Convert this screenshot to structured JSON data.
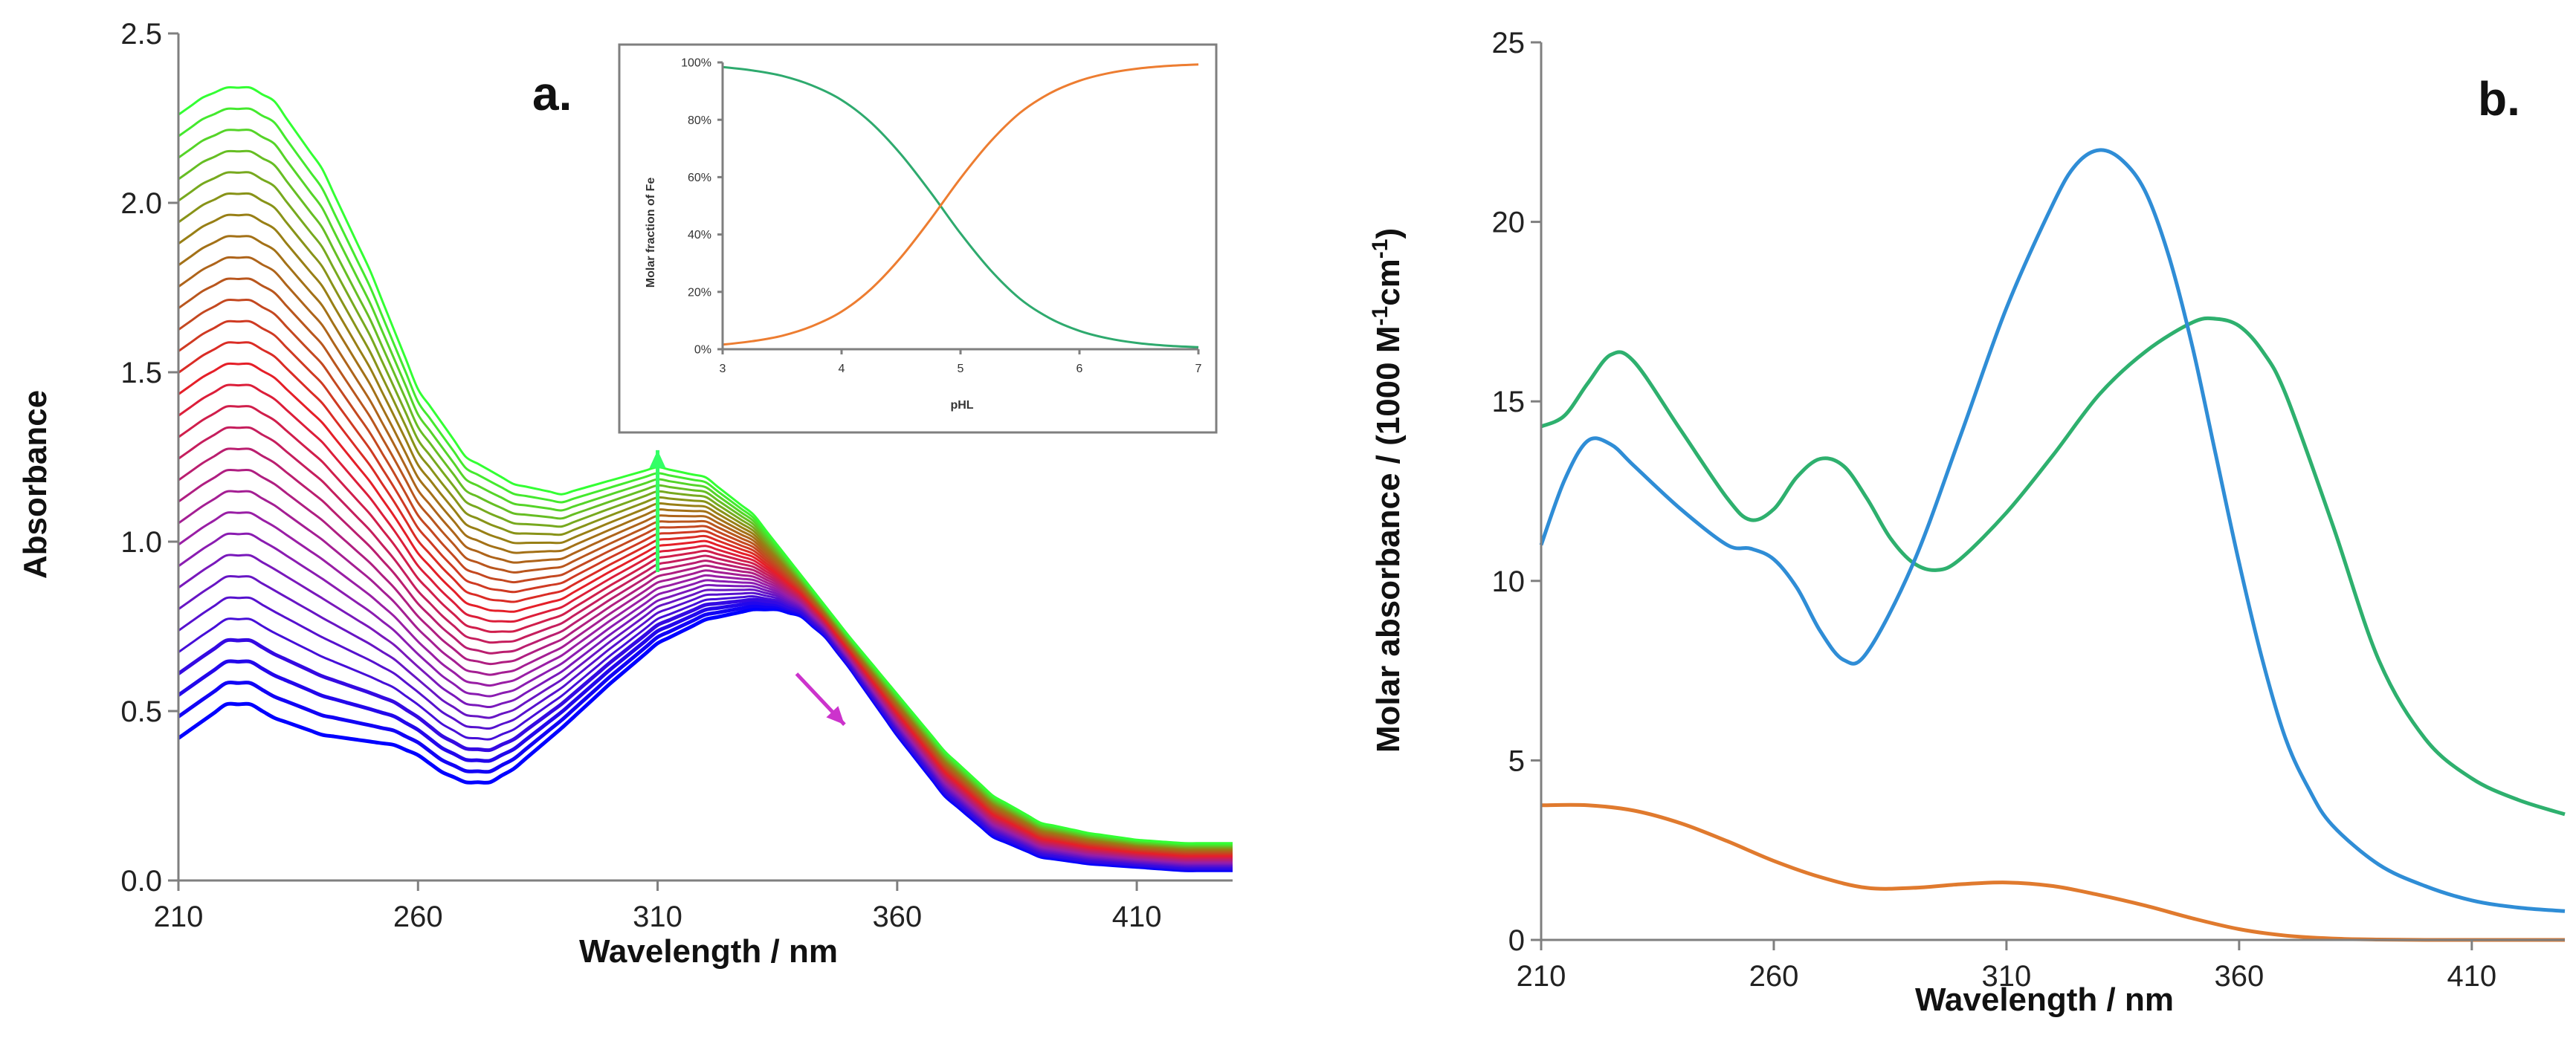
{
  "chart_data": [
    {
      "type": "line",
      "panel_label": "a.",
      "xlabel": "Wavelength / nm",
      "ylabel": "Absorbance",
      "xlim": [
        210,
        430
      ],
      "ylim": [
        0,
        2.5
      ],
      "xticks": [
        "210",
        "260",
        "310",
        "360",
        "410"
      ],
      "yticks": [
        "0.0",
        "0.5",
        "1.0",
        "1.5",
        "2.0",
        "2.5"
      ],
      "series_count": 30,
      "start_spectrum": {
        "color": "#0000ff",
        "x": [
          210,
          215,
          220,
          225,
          230,
          240,
          250,
          255,
          260,
          265,
          270,
          275,
          280,
          290,
          300,
          310,
          320,
          330,
          335,
          340,
          345,
          350,
          360,
          370,
          380,
          390,
          400,
          410,
          420,
          430
        ],
        "y": [
          0.42,
          0.47,
          0.52,
          0.52,
          0.48,
          0.43,
          0.41,
          0.4,
          0.37,
          0.32,
          0.29,
          0.29,
          0.33,
          0.45,
          0.58,
          0.7,
          0.77,
          0.8,
          0.8,
          0.78,
          0.72,
          0.63,
          0.43,
          0.25,
          0.13,
          0.07,
          0.05,
          0.04,
          0.03,
          0.03
        ]
      },
      "end_spectrum": {
        "color": "#33ff33",
        "x": [
          210,
          215,
          220,
          225,
          230,
          240,
          250,
          260,
          270,
          280,
          290,
          300,
          310,
          320,
          330,
          340,
          350,
          360,
          370,
          380,
          390,
          400,
          410,
          420,
          430
        ],
        "y": [
          2.26,
          2.31,
          2.34,
          2.34,
          2.3,
          2.1,
          1.8,
          1.45,
          1.25,
          1.17,
          1.14,
          1.18,
          1.22,
          1.19,
          1.08,
          0.9,
          0.72,
          0.55,
          0.38,
          0.25,
          0.17,
          0.14,
          0.12,
          0.11,
          0.11
        ]
      },
      "arrows": [
        {
          "from": [
            310,
            0.91
          ],
          "to": [
            310,
            1.27
          ],
          "color": "#33ff66"
        },
        {
          "from": [
            339,
            0.61
          ],
          "to": [
            349,
            0.46
          ],
          "color": "#cc33cc"
        }
      ],
      "inset": {
        "type": "line",
        "xlabel": "pHL",
        "ylabel": "Molar fraction of Fe",
        "xlim": [
          3,
          7
        ],
        "ylim": [
          0,
          100
        ],
        "xticks": [
          "3",
          "4",
          "5",
          "6",
          "7"
        ],
        "yticks": [
          "0%",
          "20%",
          "40%",
          "60%",
          "80%",
          "100%"
        ],
        "series": [
          {
            "color": "#2eaa6e",
            "x": [
              3,
              3.25,
              3.5,
              3.75,
              4,
              4.25,
              4.5,
              4.75,
              5,
              5.25,
              5.5,
              5.75,
              6,
              6.25,
              6.5,
              6.75,
              7
            ],
            "y": [
              98.4,
              97.2,
              95.3,
              92.0,
              86.9,
              78.9,
              67.9,
              54.6,
              40.4,
              27.7,
              17.6,
              10.8,
              6.4,
              3.7,
              2.1,
              1.2,
              0.7
            ]
          },
          {
            "color": "#ed7d31",
            "x": [
              3,
              3.25,
              3.5,
              3.75,
              4,
              4.25,
              4.5,
              4.75,
              5,
              5.25,
              5.5,
              5.75,
              6,
              6.25,
              6.5,
              6.75,
              7
            ],
            "y": [
              1.6,
              2.8,
              4.7,
              8.0,
              13.1,
              21.1,
              32.1,
              45.4,
              59.6,
              72.3,
              82.4,
              89.2,
              93.6,
              96.3,
              97.9,
              98.8,
              99.3
            ]
          }
        ]
      }
    },
    {
      "type": "line",
      "panel_label": "b.",
      "xlabel": "Wavelength / nm",
      "ylabel_main": "Molar absorbance / (1000 M",
      "ylabel_sup1": "-1",
      "ylabel_mid": "cm",
      "ylabel_sup2": "-1",
      "ylabel_end": ")",
      "xlim": [
        210,
        430
      ],
      "ylim": [
        0,
        25
      ],
      "xticks": [
        "210",
        "260",
        "310",
        "360",
        "410"
      ],
      "yticks": [
        "0",
        "5",
        "10",
        "15",
        "20",
        "25"
      ],
      "series": [
        {
          "color": "#2eb06e",
          "x": [
            210,
            215,
            220,
            225,
            230,
            240,
            250,
            255,
            260,
            265,
            270,
            275,
            280,
            285,
            290,
            295,
            300,
            310,
            320,
            330,
            340,
            350,
            355,
            360,
            365,
            370,
            380,
            390,
            400,
            410,
            420,
            430
          ],
          "y": [
            14.3,
            14.6,
            15.5,
            16.3,
            16.1,
            14.2,
            12.3,
            11.7,
            12.0,
            12.9,
            13.4,
            13.2,
            12.3,
            11.2,
            10.5,
            10.3,
            10.6,
            11.9,
            13.5,
            15.2,
            16.4,
            17.2,
            17.3,
            17.1,
            16.4,
            15.2,
            11.6,
            7.8,
            5.6,
            4.5,
            3.9,
            3.5
          ]
        },
        {
          "color": "#2f8dd6",
          "x": [
            210,
            215,
            220,
            225,
            230,
            240,
            250,
            255,
            260,
            265,
            270,
            275,
            280,
            290,
            300,
            310,
            320,
            325,
            330,
            335,
            340,
            345,
            350,
            355,
            360,
            365,
            370,
            375,
            380,
            390,
            400,
            410,
            420,
            430
          ],
          "y": [
            11.0,
            12.8,
            13.9,
            13.8,
            13.2,
            12.0,
            11.0,
            10.9,
            10.6,
            9.8,
            8.6,
            7.8,
            8.0,
            10.5,
            14.0,
            17.6,
            20.5,
            21.6,
            22.0,
            21.7,
            20.8,
            19.0,
            16.5,
            13.5,
            10.5,
            7.8,
            5.6,
            4.2,
            3.2,
            2.1,
            1.5,
            1.1,
            0.9,
            0.8
          ]
        },
        {
          "color": "#e07a2e",
          "x": [
            210,
            220,
            230,
            240,
            250,
            260,
            270,
            280,
            290,
            300,
            310,
            320,
            330,
            340,
            350,
            360,
            370,
            380,
            390,
            400,
            410,
            420,
            430
          ],
          "y": [
            3.75,
            3.75,
            3.6,
            3.25,
            2.75,
            2.2,
            1.75,
            1.45,
            1.45,
            1.55,
            1.6,
            1.5,
            1.25,
            0.95,
            0.6,
            0.3,
            0.12,
            0.04,
            0.01,
            0.0,
            0.0,
            0.0,
            0.0
          ]
        }
      ]
    }
  ]
}
